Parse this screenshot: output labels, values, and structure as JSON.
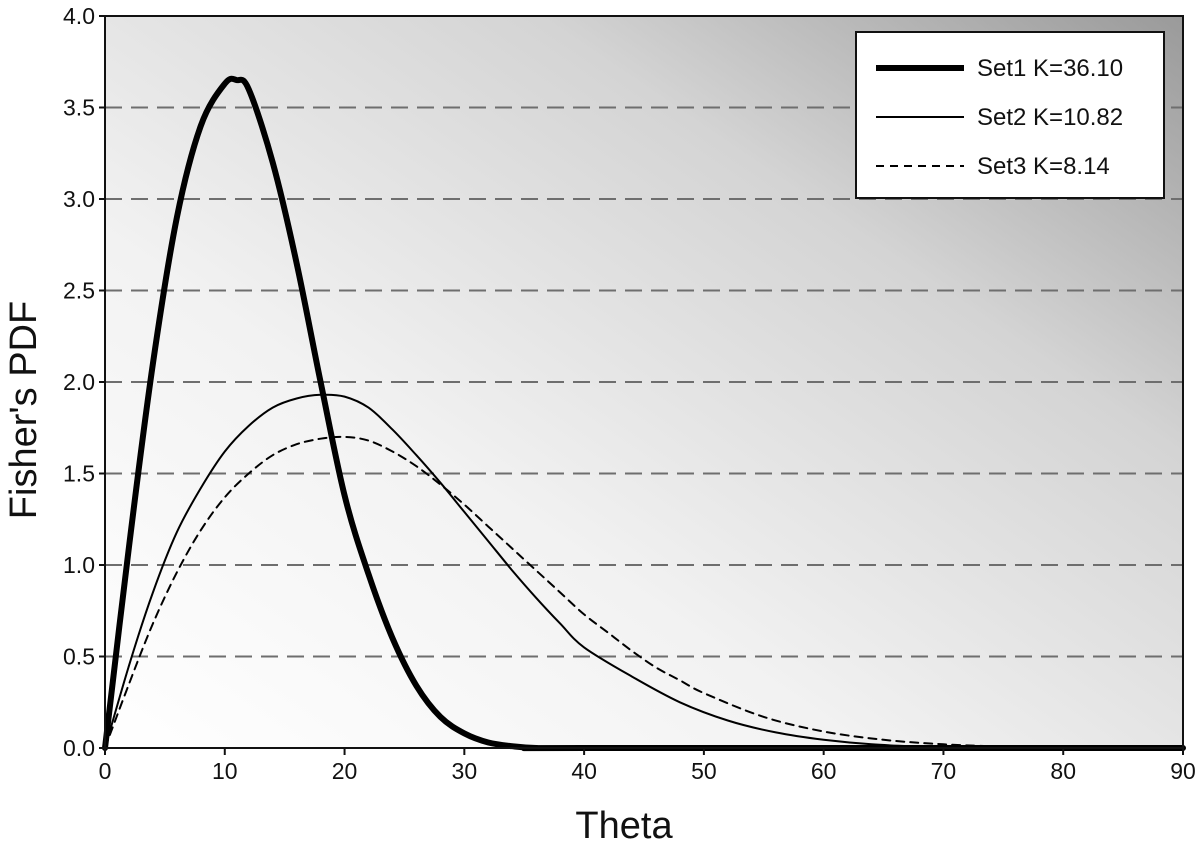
{
  "chart_data": {
    "type": "line",
    "title": "",
    "xlabel": "Theta",
    "ylabel": "Fisher's PDF",
    "xlim": [
      0,
      90
    ],
    "ylim": [
      0,
      4
    ],
    "xticks": [
      "0",
      "10",
      "20",
      "30",
      "40",
      "50",
      "60",
      "70",
      "80",
      "90"
    ],
    "yticks": [
      "0.0",
      "0.5",
      "1.0",
      "1.5",
      "2.0",
      "2.5",
      "3.0",
      "3.5",
      "4.0"
    ],
    "grid": "horizontal-dashed",
    "legend_position": "top-right",
    "series": [
      {
        "name": "Set1 K=36.10",
        "style": "thick-solid",
        "x": [
          0,
          2,
          4,
          6,
          8,
          10,
          11,
          12,
          14,
          16,
          18,
          20,
          22,
          24,
          26,
          28,
          30,
          32,
          34,
          36,
          40,
          90
        ],
        "y": [
          0,
          1.1,
          2.1,
          2.9,
          3.4,
          3.63,
          3.65,
          3.6,
          3.2,
          2.65,
          2.0,
          1.38,
          0.95,
          0.6,
          0.34,
          0.17,
          0.08,
          0.03,
          0.01,
          0.0,
          0.0,
          0.0
        ]
      },
      {
        "name": "Set2 K=10.82",
        "style": "thin-solid",
        "x": [
          0,
          2,
          4,
          6,
          8,
          10,
          12,
          14,
          16,
          18,
          20,
          22,
          24,
          26,
          28,
          30,
          32,
          34,
          36,
          38,
          40,
          44,
          48,
          52,
          56,
          60,
          64,
          68,
          72,
          90
        ],
        "y": [
          0,
          0.45,
          0.85,
          1.18,
          1.42,
          1.62,
          1.76,
          1.86,
          1.91,
          1.93,
          1.92,
          1.86,
          1.74,
          1.6,
          1.45,
          1.29,
          1.13,
          0.97,
          0.82,
          0.68,
          0.55,
          0.39,
          0.25,
          0.15,
          0.085,
          0.045,
          0.02,
          0.008,
          0.0,
          0.0
        ]
      },
      {
        "name": "Set3 K=8.14",
        "style": "dashed",
        "x": [
          0,
          2,
          4,
          6,
          8,
          10,
          12,
          14,
          16,
          18,
          20,
          22,
          24,
          26,
          28,
          30,
          32,
          34,
          36,
          38,
          40,
          42,
          44,
          46,
          48,
          50,
          55,
          60,
          65,
          70,
          75,
          80,
          90
        ],
        "y": [
          0,
          0.35,
          0.68,
          0.96,
          1.19,
          1.37,
          1.5,
          1.6,
          1.66,
          1.69,
          1.7,
          1.68,
          1.62,
          1.54,
          1.44,
          1.33,
          1.21,
          1.09,
          0.97,
          0.85,
          0.73,
          0.63,
          0.53,
          0.44,
          0.37,
          0.3,
          0.17,
          0.09,
          0.045,
          0.02,
          0.008,
          0.0,
          0.0
        ]
      }
    ]
  }
}
